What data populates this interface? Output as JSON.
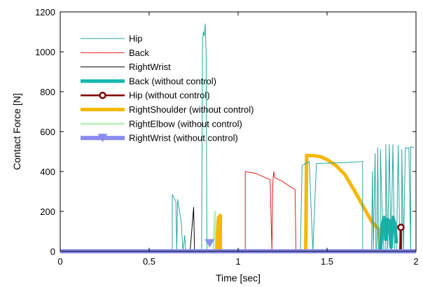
{
  "chart_data": {
    "type": "line",
    "title": "",
    "xlabel": "Time [sec]",
    "ylabel": "Contact Force [N]",
    "xlim": [
      0,
      2
    ],
    "ylim": [
      0,
      1200
    ],
    "xticks": [
      0,
      0.5,
      1,
      1.5,
      2
    ],
    "yticks": [
      0,
      200,
      400,
      600,
      800,
      1000,
      1200
    ],
    "x_tick_labels": [
      "0",
      "0.5",
      "1",
      "1.5",
      "2"
    ],
    "y_tick_labels": [
      "0",
      "200",
      "400",
      "600",
      "800",
      "1000",
      "1200"
    ],
    "grid": false,
    "legend_position": "top-left",
    "series": [
      {
        "name": "Hip",
        "color": "#2aa6a0",
        "style": "thin",
        "points": [
          [
            0.63,
            0
          ],
          [
            0.63,
            285
          ],
          [
            0.65,
            250
          ],
          [
            0.655,
            0
          ],
          [
            0.66,
            260
          ],
          [
            0.68,
            150
          ],
          [
            0.69,
            0
          ],
          [
            0.7,
            80
          ],
          [
            0.705,
            0
          ],
          [
            0.795,
            0
          ],
          [
            0.8,
            1060
          ],
          [
            0.805,
            1100
          ],
          [
            0.81,
            1080
          ],
          [
            0.815,
            1140
          ],
          [
            0.82,
            1000
          ],
          [
            0.825,
            0
          ],
          [
            1.35,
            0
          ],
          [
            1.36,
            430
          ],
          [
            1.38,
            440
          ],
          [
            1.4,
            450
          ],
          [
            1.42,
            0
          ],
          [
            1.44,
            440
          ],
          [
            1.6,
            445
          ],
          [
            1.7,
            450
          ],
          [
            1.7,
            0
          ],
          [
            1.75,
            0
          ],
          [
            1.755,
            400
          ],
          [
            1.76,
            0
          ],
          [
            1.77,
            490
          ],
          [
            1.775,
            0
          ],
          [
            1.78,
            0
          ],
          [
            1.785,
            520
          ],
          [
            1.79,
            0
          ],
          [
            1.8,
            0
          ],
          [
            1.8,
            510
          ],
          [
            1.81,
            200
          ],
          [
            1.82,
            0
          ],
          [
            1.83,
            0
          ],
          [
            1.83,
            535
          ],
          [
            1.84,
            0
          ],
          [
            1.85,
            535
          ],
          [
            1.86,
            0
          ],
          [
            1.87,
            535
          ],
          [
            1.88,
            0
          ],
          [
            1.89,
            0
          ],
          [
            1.9,
            530
          ],
          [
            1.91,
            0
          ],
          [
            1.92,
            0
          ],
          [
            1.92,
            510
          ],
          [
            1.93,
            0
          ],
          [
            1.94,
            520
          ],
          [
            1.95,
            515
          ],
          [
            1.96,
            520
          ],
          [
            1.97,
            0
          ],
          [
            1.97,
            525
          ],
          [
            1.98,
            520
          ],
          [
            1.99,
            520
          ]
        ]
      },
      {
        "name": "Back",
        "color": "#e02020",
        "style": "thin",
        "points": [
          [
            1.04,
            0
          ],
          [
            1.04,
            400
          ],
          [
            1.1,
            390
          ],
          [
            1.15,
            370
          ],
          [
            1.18,
            360
          ],
          [
            1.19,
            0
          ],
          [
            1.195,
            340
          ],
          [
            1.2,
            400
          ],
          [
            1.205,
            370
          ],
          [
            1.25,
            350
          ],
          [
            1.3,
            320
          ],
          [
            1.32,
            310
          ],
          [
            1.325,
            0
          ]
        ]
      },
      {
        "name": "RightWrist",
        "color": "#000000",
        "style": "thin",
        "points": [
          [
            0.73,
            0
          ],
          [
            0.75,
            220
          ],
          [
            0.755,
            0
          ]
        ]
      },
      {
        "name": "Back (without control)",
        "color": "#11b5ad",
        "style": "thick",
        "points": [
          [
            1.8,
            0
          ],
          [
            1.81,
            130
          ],
          [
            1.82,
            170
          ],
          [
            1.83,
            60
          ],
          [
            1.84,
            160
          ],
          [
            1.85,
            150
          ],
          [
            1.86,
            20
          ],
          [
            1.87,
            170
          ],
          [
            1.88,
            140
          ],
          [
            1.89,
            40
          ]
        ]
      },
      {
        "name": "Hip (without control)",
        "color": "#800000",
        "style": "marker-circle",
        "points": [
          [
            1.91,
            0
          ],
          [
            1.915,
            120
          ],
          [
            1.915,
            0
          ]
        ],
        "marker_at": [
          1.915,
          120
        ]
      },
      {
        "name": "RightShoulder (without control)",
        "color": "#f5b800",
        "style": "thick",
        "points": [
          [
            0.88,
            0
          ],
          [
            0.89,
            170
          ],
          [
            0.9,
            180
          ],
          [
            0.9,
            0
          ],
          [
            1.38,
            0
          ],
          [
            1.385,
            480
          ],
          [
            1.42,
            480
          ],
          [
            1.46,
            475
          ],
          [
            1.5,
            460
          ],
          [
            1.55,
            430
          ],
          [
            1.6,
            385
          ],
          [
            1.65,
            310
          ],
          [
            1.7,
            230
          ],
          [
            1.75,
            150
          ],
          [
            1.79,
            110
          ],
          [
            1.8,
            0
          ]
        ]
      },
      {
        "name": "RightElbow (without control)",
        "color": "#b4f0b4",
        "style": "medium",
        "points": [
          [
            0.86,
            0
          ],
          [
            0.87,
            200
          ],
          [
            0.875,
            0
          ]
        ]
      },
      {
        "name": "RightWrist (without control)",
        "color": "#8a8cf0",
        "style": "marker-triangle",
        "points": [
          [
            0,
            0
          ],
          [
            2,
            0
          ]
        ],
        "marker_at": [
          0.84,
          40
        ]
      }
    ]
  }
}
